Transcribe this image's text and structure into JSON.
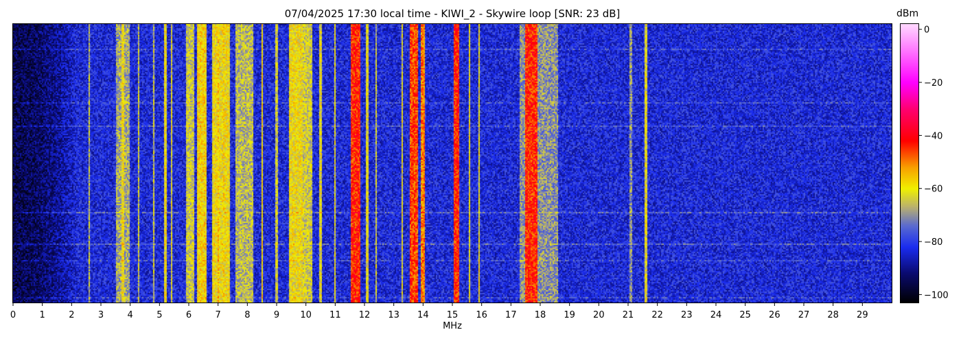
{
  "chart_data": {
    "type": "heatmap",
    "title": "07/04/2025 17:30 local time - KIWI_2 - Skywire loop [SNR: 23 dB]",
    "xlabel": "MHz",
    "xlim": [
      0,
      30
    ],
    "x_ticks": [
      0,
      1,
      2,
      3,
      4,
      5,
      6,
      7,
      8,
      9,
      10,
      11,
      12,
      13,
      14,
      15,
      16,
      17,
      18,
      19,
      20,
      21,
      22,
      23,
      24,
      25,
      26,
      27,
      28,
      29
    ],
    "x_tick_labels": [
      "0",
      "1",
      "2",
      "3",
      "4",
      "5",
      "6",
      "7",
      "8",
      "9",
      "10",
      "11",
      "12",
      "13",
      "14",
      "15",
      "16",
      "17",
      "18",
      "19",
      "20",
      "21",
      "22",
      "23",
      "24",
      "25",
      "26",
      "27",
      "28",
      "29"
    ],
    "colorbar": {
      "label": "dBm",
      "range": [
        -103,
        2
      ],
      "ticks": [
        0,
        -20,
        -40,
        -60,
        -80,
        -100
      ],
      "tick_labels": [
        "0",
        "−20",
        "−40",
        "−60",
        "−80",
        "−100"
      ],
      "colormap": [
        {
          "v": -103,
          "color": "#000000"
        },
        {
          "v": -92,
          "color": "#0a0a6e"
        },
        {
          "v": -82,
          "color": "#1a2cf0"
        },
        {
          "v": -74,
          "color": "#5a6ad0"
        },
        {
          "v": -67,
          "color": "#b8b070"
        },
        {
          "v": -60,
          "color": "#f0f000"
        },
        {
          "v": -52,
          "color": "#f8a000"
        },
        {
          "v": -42,
          "color": "#ff0000"
        },
        {
          "v": -30,
          "color": "#ff0070"
        },
        {
          "v": -20,
          "color": "#ff00ff"
        },
        {
          "v": 2,
          "color": "#ffd8ff"
        }
      ]
    },
    "background_level_dbm": -83,
    "low_freq_background": {
      "freq_to_mhz": 2.2,
      "level_dbm": -95
    },
    "bands": [
      {
        "f_start": 3.5,
        "f_end": 4.0,
        "level_dbm": -68
      },
      {
        "f_start": 5.9,
        "f_end": 6.2,
        "level_dbm": -64
      },
      {
        "f_start": 6.3,
        "f_end": 6.6,
        "level_dbm": -58
      },
      {
        "f_start": 6.8,
        "f_end": 7.4,
        "level_dbm": -60
      },
      {
        "f_start": 7.6,
        "f_end": 8.2,
        "level_dbm": -66
      },
      {
        "f_start": 9.4,
        "f_end": 9.9,
        "level_dbm": -60
      },
      {
        "f_start": 9.9,
        "f_end": 10.2,
        "level_dbm": -64
      },
      {
        "f_start": 11.55,
        "f_end": 11.85,
        "level_dbm": -44
      },
      {
        "f_start": 13.55,
        "f_end": 13.85,
        "level_dbm": -46
      },
      {
        "f_start": 13.9,
        "f_end": 14.05,
        "level_dbm": -50
      },
      {
        "f_start": 15.05,
        "f_end": 15.25,
        "level_dbm": -44
      },
      {
        "f_start": 17.5,
        "f_end": 17.9,
        "level_dbm": -44
      },
      {
        "f_start": 17.3,
        "f_end": 18.6,
        "level_dbm": -70
      },
      {
        "f_start": 21.55,
        "f_end": 21.65,
        "level_dbm": -62
      }
    ],
    "lines": [
      {
        "f": 2.6,
        "level_dbm": -66
      },
      {
        "f": 3.75,
        "level_dbm": -60
      },
      {
        "f": 4.3,
        "level_dbm": -64
      },
      {
        "f": 4.8,
        "level_dbm": -64
      },
      {
        "f": 5.2,
        "level_dbm": -60
      },
      {
        "f": 5.4,
        "level_dbm": -62
      },
      {
        "f": 7.0,
        "level_dbm": -56
      },
      {
        "f": 7.2,
        "level_dbm": -58
      },
      {
        "f": 8.5,
        "level_dbm": -58
      },
      {
        "f": 9.0,
        "level_dbm": -64
      },
      {
        "f": 10.5,
        "level_dbm": -62
      },
      {
        "f": 11.0,
        "level_dbm": -62
      },
      {
        "f": 12.1,
        "level_dbm": -62
      },
      {
        "f": 12.4,
        "level_dbm": -64
      },
      {
        "f": 13.3,
        "level_dbm": -62
      },
      {
        "f": 15.6,
        "level_dbm": -60
      },
      {
        "f": 15.9,
        "level_dbm": -60
      },
      {
        "f": 21.1,
        "level_dbm": -70
      },
      {
        "f": 21.6,
        "level_dbm": -62
      }
    ],
    "grid": false
  }
}
